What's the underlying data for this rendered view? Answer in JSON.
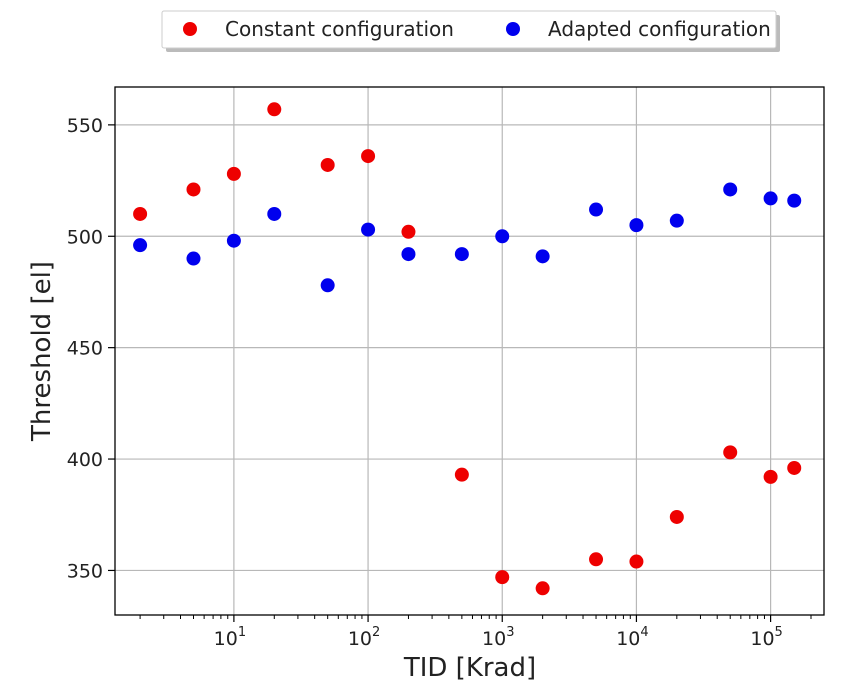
{
  "chart_data": {
    "type": "scatter",
    "xlabel": "TID [Krad]",
    "ylabel": "Threshold [el]",
    "xscale": "log",
    "xlim": [
      1.3,
      250000
    ],
    "ylim": [
      330,
      567
    ],
    "grid": true,
    "legend_position": "top-center, above plot",
    "x_ticks": [
      {
        "value": 10,
        "base": "10",
        "exp": "1"
      },
      {
        "value": 100,
        "base": "10",
        "exp": "2"
      },
      {
        "value": 1000,
        "base": "10",
        "exp": "3"
      },
      {
        "value": 10000,
        "base": "10",
        "exp": "4"
      },
      {
        "value": 100000,
        "base": "10",
        "exp": "5"
      }
    ],
    "y_ticks": [
      350,
      400,
      450,
      500,
      550
    ],
    "series": [
      {
        "name": "Constant configuration",
        "color": "#ee0000",
        "points": [
          {
            "x": 2,
            "y": 510
          },
          {
            "x": 5,
            "y": 521
          },
          {
            "x": 10,
            "y": 528
          },
          {
            "x": 20,
            "y": 557
          },
          {
            "x": 50,
            "y": 532
          },
          {
            "x": 100,
            "y": 536
          },
          {
            "x": 200,
            "y": 502
          },
          {
            "x": 500,
            "y": 393
          },
          {
            "x": 1000,
            "y": 347
          },
          {
            "x": 2000,
            "y": 342
          },
          {
            "x": 5000,
            "y": 355
          },
          {
            "x": 10000,
            "y": 354
          },
          {
            "x": 20000,
            "y": 374
          },
          {
            "x": 50000,
            "y": 403
          },
          {
            "x": 100000,
            "y": 392
          },
          {
            "x": 150000,
            "y": 396
          }
        ]
      },
      {
        "name": "Adapted configuration",
        "color": "#0000ee",
        "points": [
          {
            "x": 2,
            "y": 496
          },
          {
            "x": 5,
            "y": 490
          },
          {
            "x": 10,
            "y": 498
          },
          {
            "x": 20,
            "y": 510
          },
          {
            "x": 50,
            "y": 478
          },
          {
            "x": 100,
            "y": 503
          },
          {
            "x": 200,
            "y": 492
          },
          {
            "x": 500,
            "y": 492
          },
          {
            "x": 1000,
            "y": 500
          },
          {
            "x": 2000,
            "y": 491
          },
          {
            "x": 5000,
            "y": 512
          },
          {
            "x": 10000,
            "y": 505
          },
          {
            "x": 20000,
            "y": 507
          },
          {
            "x": 50000,
            "y": 521
          },
          {
            "x": 100000,
            "y": 517
          },
          {
            "x": 150000,
            "y": 516
          }
        ]
      }
    ]
  }
}
